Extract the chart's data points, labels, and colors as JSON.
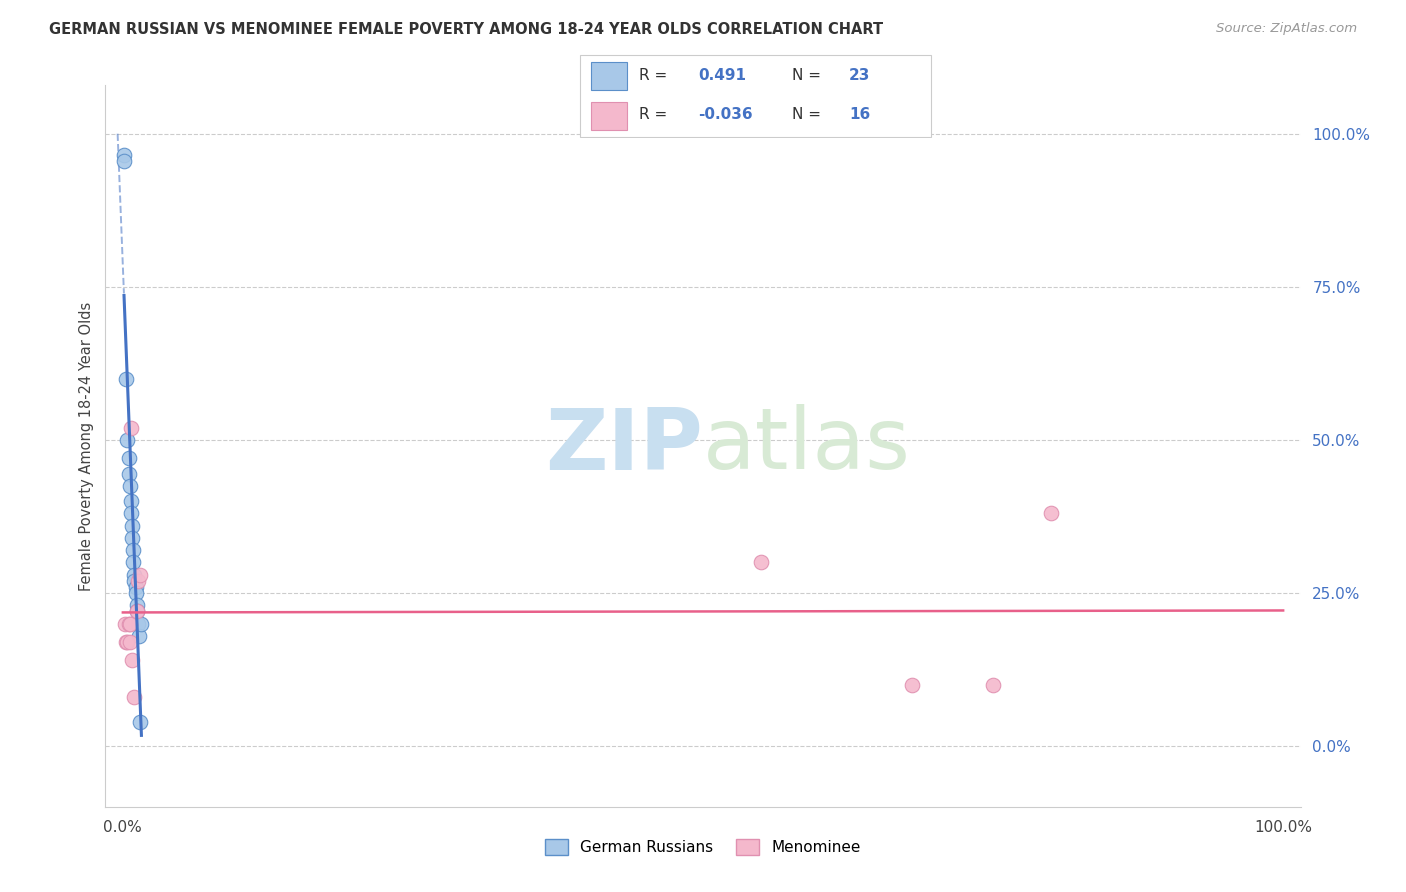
{
  "title": "GERMAN RUSSIAN VS MENOMINEE FEMALE POVERTY AMONG 18-24 YEAR OLDS CORRELATION CHART",
  "source": "Source: ZipAtlas.com",
  "ylabel": "Female Poverty Among 18-24 Year Olds",
  "ytick_vals": [
    0.0,
    0.25,
    0.5,
    0.75,
    1.0
  ],
  "ytick_labels": [
    "0.0%",
    "25.0%",
    "50.0%",
    "75.0%",
    "100.0%"
  ],
  "xtick_vals": [
    0.0,
    1.0
  ],
  "xtick_labels": [
    "0.0%",
    "100.0%"
  ],
  "legend_label1": "German Russians",
  "legend_label2": "Menominee",
  "r1_text": "0.491",
  "n1_text": "23",
  "r2_text": "-0.036",
  "n2_text": "16",
  "color1_fill": "#a8c8e8",
  "color1_edge": "#5b8fc9",
  "color2_fill": "#f4b8cc",
  "color2_edge": "#e090b0",
  "line1_color": "#4472c4",
  "line2_color": "#e8608a",
  "watermark_zip": "ZIP",
  "watermark_atlas": "atlas",
  "gr_x": [
    0.001,
    0.001,
    0.003,
    0.004,
    0.005,
    0.005,
    0.006,
    0.007,
    0.007,
    0.008,
    0.008,
    0.009,
    0.009,
    0.01,
    0.01,
    0.011,
    0.011,
    0.012,
    0.012,
    0.013,
    0.014,
    0.015,
    0.016
  ],
  "gr_y": [
    0.965,
    0.955,
    0.6,
    0.5,
    0.47,
    0.445,
    0.425,
    0.4,
    0.38,
    0.36,
    0.34,
    0.32,
    0.3,
    0.28,
    0.27,
    0.26,
    0.25,
    0.23,
    0.22,
    0.2,
    0.18,
    0.04,
    0.2
  ],
  "men_x": [
    0.002,
    0.003,
    0.004,
    0.005,
    0.006,
    0.006,
    0.007,
    0.008,
    0.01,
    0.012,
    0.013,
    0.015,
    0.55,
    0.68,
    0.75,
    0.8
  ],
  "men_y": [
    0.2,
    0.17,
    0.17,
    0.2,
    0.2,
    0.17,
    0.52,
    0.14,
    0.08,
    0.22,
    0.27,
    0.28,
    0.3,
    0.1,
    0.1,
    0.38
  ],
  "xlim": [
    -0.015,
    1.015
  ],
  "ylim": [
    -0.1,
    1.08
  ],
  "plot_xlim_for_line": [
    0.0,
    1.0
  ]
}
